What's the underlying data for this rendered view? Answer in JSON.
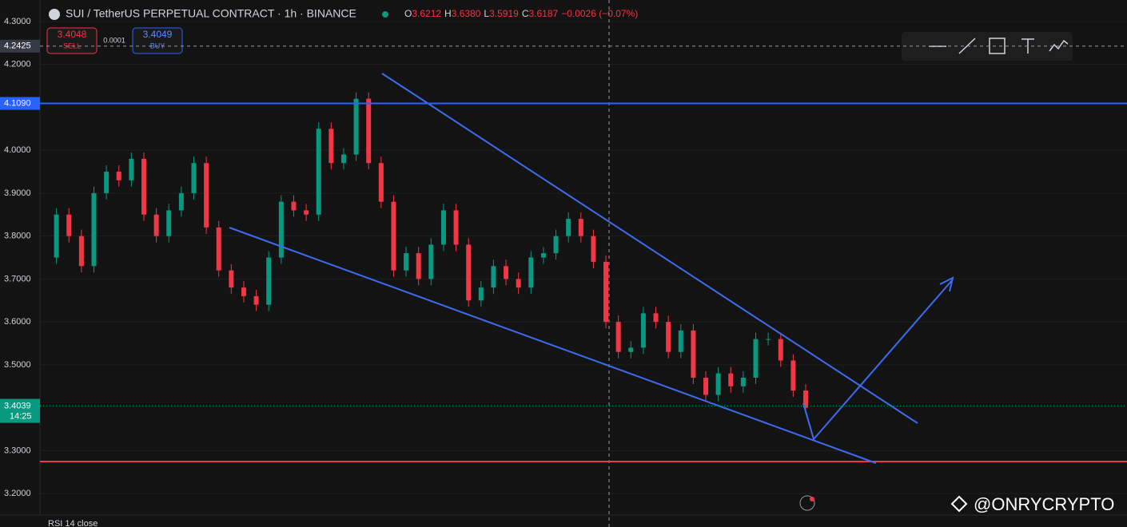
{
  "header": {
    "symbol": "SUI / TetherUS PERPETUAL CONTRACT · 1h · BINANCE",
    "o_label": "O",
    "o": "3.6212",
    "h_label": "H",
    "h": "3.6380",
    "l_label": "L",
    "l": "3.5919",
    "c_label": "C",
    "c": "3.6187",
    "change": "−0.0026 (−0.07%)"
  },
  "trade": {
    "sell_price": "3.4048",
    "sell": "SELL",
    "spread": "0.0001",
    "buy_price": "3.4049",
    "buy": "BUY"
  },
  "chart_data": {
    "type": "candlestick",
    "closes": [
      3.75,
      3.85,
      3.8,
      3.73,
      3.9,
      3.95,
      3.93,
      3.98,
      3.85,
      3.8,
      3.86,
      3.9,
      3.97,
      3.82,
      3.72,
      3.68,
      3.66,
      3.64,
      3.75,
      3.88,
      3.86,
      3.85,
      4.05,
      3.97,
      3.99,
      4.12,
      3.97,
      3.88,
      3.72,
      3.76,
      3.7,
      3.78,
      3.86,
      3.78,
      3.65,
      3.68,
      3.73,
      3.7,
      3.68,
      3.75,
      3.76,
      3.8,
      3.84,
      3.8,
      3.74,
      3.6,
      3.53,
      3.54,
      3.62,
      3.6,
      3.53,
      3.58,
      3.47,
      3.43,
      3.48,
      3.45,
      3.47,
      3.56,
      3.56,
      3.51,
      3.44,
      3.4
    ],
    "ylim": [
      3.15,
      4.35
    ],
    "yticks": [
      {
        "value": 3.2,
        "label": "3.2000"
      },
      {
        "value": 3.3,
        "label": "3.3000"
      },
      {
        "value": 3.5,
        "label": "3.5000"
      },
      {
        "value": 3.6,
        "label": "3.6000"
      },
      {
        "value": 3.7,
        "label": "3.7000"
      },
      {
        "value": 3.8,
        "label": "3.8000"
      },
      {
        "value": 3.9,
        "label": "3.9000"
      },
      {
        "value": 4.0,
        "label": "4.0000"
      },
      {
        "value": 4.2,
        "label": "4.2000"
      },
      {
        "value": 4.3,
        "label": "4.3000"
      }
    ],
    "up_color": "#089981",
    "down_color": "#f23645"
  },
  "crosshair": {
    "value": 4.2425,
    "label": "4.2425"
  },
  "level": {
    "value": 4.109,
    "label": "4.1090"
  },
  "last": {
    "value": 3.4039,
    "label": "3.4039",
    "countdown": "14:25"
  },
  "indicator": "RSI 14 close",
  "watermark": "@ONRYCRYPTO"
}
